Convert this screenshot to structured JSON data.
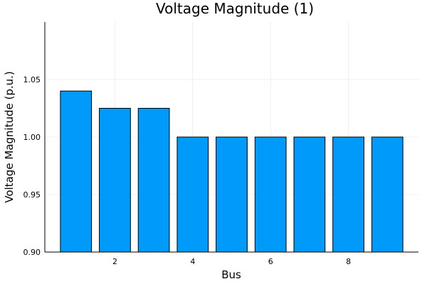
{
  "chart_data": {
    "type": "bar",
    "title": "Voltage Magnitude (1)",
    "xlabel": "Bus",
    "ylabel": "Voltage Magnitude (p.u.)",
    "x": [
      1,
      2,
      3,
      4,
      5,
      6,
      7,
      8,
      9
    ],
    "values": [
      1.04,
      1.025,
      1.025,
      1.0,
      1.0,
      1.0,
      1.0,
      1.0,
      1.0
    ],
    "xlim": [
      0.2,
      9.8
    ],
    "ylim": [
      0.9,
      1.1
    ],
    "xticks": [
      2,
      4,
      6,
      8
    ],
    "xtick_labels": [
      "2",
      "4",
      "6",
      "8"
    ],
    "yticks": [
      0.9,
      0.95,
      1.0,
      1.05
    ],
    "ytick_labels": [
      "0.90",
      "0.95",
      "1.00",
      "1.05"
    ],
    "grid": true,
    "legend": "none",
    "colors": {
      "bar": "#009AFA",
      "bar_edge": "#000000",
      "grid": "#E6E6E6",
      "axis": "#000000"
    }
  }
}
